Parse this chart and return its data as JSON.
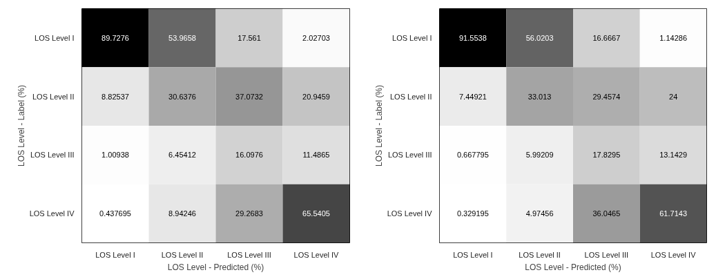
{
  "chart_data": [
    {
      "type": "heatmap",
      "data_labels": true,
      "xlabel": "LOS Level - Predicted (%)",
      "ylabel": "LOS Level - Label (%)",
      "categories": [
        "LOS Level I",
        "LOS Level II",
        "LOS Level III",
        "LOS Level IV"
      ],
      "y_categories": [
        "LOS Level I",
        "LOS Level II",
        "LOS Level III",
        "LOS Level IV"
      ],
      "cells": [
        [
          89.7276,
          53.9658,
          17.561,
          2.02703
        ],
        [
          8.82537,
          30.6376,
          37.0732,
          20.9459
        ],
        [
          1.00938,
          6.45412,
          16.0976,
          11.4865
        ],
        [
          0.437695,
          8.94246,
          29.2683,
          65.5405
        ]
      ]
    },
    {
      "type": "heatmap",
      "data_labels": true,
      "xlabel": "LOS Level - Predicted (%)",
      "ylabel": "LOS Level - Label (%)",
      "categories": [
        "LOS Level I",
        "LOS Level II",
        "LOS Level III",
        "LOS Level IV"
      ],
      "y_categories": [
        "LOS Level I",
        "LOS Level II",
        "LOS Level III",
        "LOS Level IV"
      ],
      "cells": [
        [
          91.5538,
          56.0203,
          16.6667,
          1.14286
        ],
        [
          7.44921,
          33.013,
          29.4574,
          24
        ],
        [
          0.667795,
          5.99209,
          17.8295,
          13.1429
        ],
        [
          0.329195,
          4.97456,
          36.0465,
          61.7143
        ]
      ]
    }
  ]
}
